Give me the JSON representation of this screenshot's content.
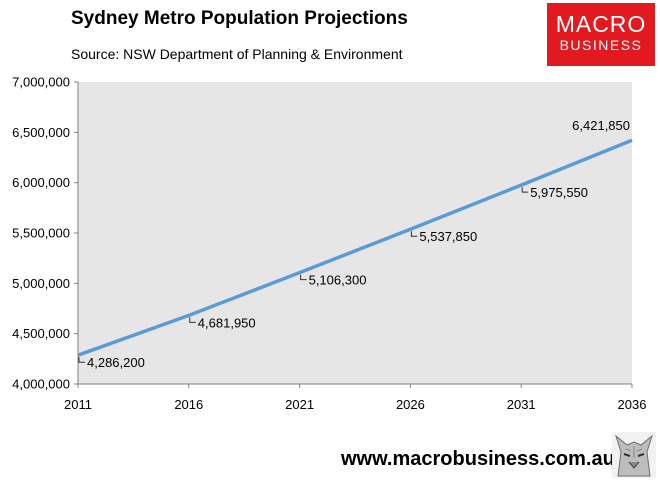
{
  "header": {
    "title": "Sydney Metro Population Projections",
    "subtitle": "Source: NSW Department of Planning & Environment"
  },
  "logo": {
    "line1": "MACRO",
    "line2": "BUSINESS",
    "color": "#e2191f"
  },
  "footer": {
    "website": "www.macrobusiness.com.au"
  },
  "chart_data": {
    "type": "line",
    "title": "Sydney Metro Population Projections",
    "subtitle": "Source: NSW Department of Planning & Environment",
    "x": [
      2011,
      2016,
      2021,
      2026,
      2031,
      2036
    ],
    "x_tick_labels": [
      "2011",
      "2016",
      "2021",
      "2026",
      "2031",
      "2036"
    ],
    "series": [
      {
        "values": [
          4286200,
          4681950,
          5106300,
          5537850,
          5975550,
          6421850
        ],
        "data_labels": [
          "4,286,200",
          "4,681,950",
          "5,106,300",
          "5,537,850",
          "5,975,550",
          "6,421,850"
        ],
        "color": "#5b9bd5"
      }
    ],
    "xlim": [
      2011,
      2036
    ],
    "ylim": [
      4000000,
      7000000
    ],
    "y_ticks": [
      4000000,
      4500000,
      5000000,
      5500000,
      6000000,
      6500000,
      7000000
    ],
    "y_tick_labels": [
      "4,000,000",
      "4,500,000",
      "5,000,000",
      "5,500,000",
      "6,000,000",
      "6,500,000",
      "7,000,000"
    ],
    "plot_background": "#e6e6e6",
    "grid": false,
    "legend": "none"
  }
}
